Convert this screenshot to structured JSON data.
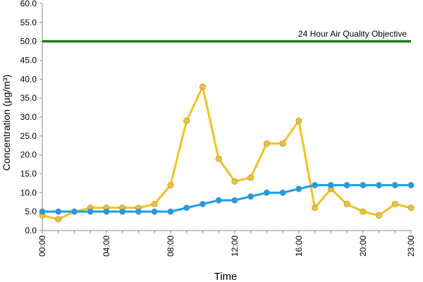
{
  "chart_data": {
    "type": "line",
    "xlabel": "Time",
    "ylabel": "Concentration (µg/m³)",
    "ylim": [
      0,
      60
    ],
    "y_ticks": [
      "0.0",
      "5.0",
      "10.0",
      "15.0",
      "20.0",
      "25.0",
      "30.0",
      "35.0",
      "40.0",
      "45.0",
      "50.0",
      "55.0",
      "60.0"
    ],
    "x": [
      "00:00",
      "01:00",
      "02:00",
      "03:00",
      "04:00",
      "05:00",
      "06:00",
      "07:00",
      "08:00",
      "09:00",
      "10:00",
      "11:00",
      "12:00",
      "13:00",
      "14:00",
      "15:00",
      "16:00",
      "17:00",
      "18:00",
      "19:00",
      "20:00",
      "21:00",
      "22:00",
      "23:00"
    ],
    "x_tick_labels": [
      "00:00",
      "04:00",
      "08:00",
      "12:00",
      "16:00",
      "20:00",
      "23:00"
    ],
    "grid": false,
    "legend": "none",
    "series": [
      {
        "color": "#f2c21f",
        "values": [
          4,
          3,
          5,
          6,
          6,
          6,
          6,
          7,
          12,
          29,
          38,
          19,
          13,
          14,
          23,
          23,
          29,
          6,
          11,
          7,
          5,
          4,
          7,
          6
        ]
      },
      {
        "color": "#1b9bea",
        "values": [
          5,
          5,
          5,
          5,
          5,
          5,
          5,
          5,
          5,
          6,
          7,
          8,
          8,
          9,
          10,
          10,
          11,
          12,
          12,
          12,
          12,
          12,
          12,
          12
        ]
      }
    ],
    "reference_line": {
      "label": "24 Hour Air Quality Objective",
      "value": 50,
      "color": "#1e7b1e"
    }
  }
}
